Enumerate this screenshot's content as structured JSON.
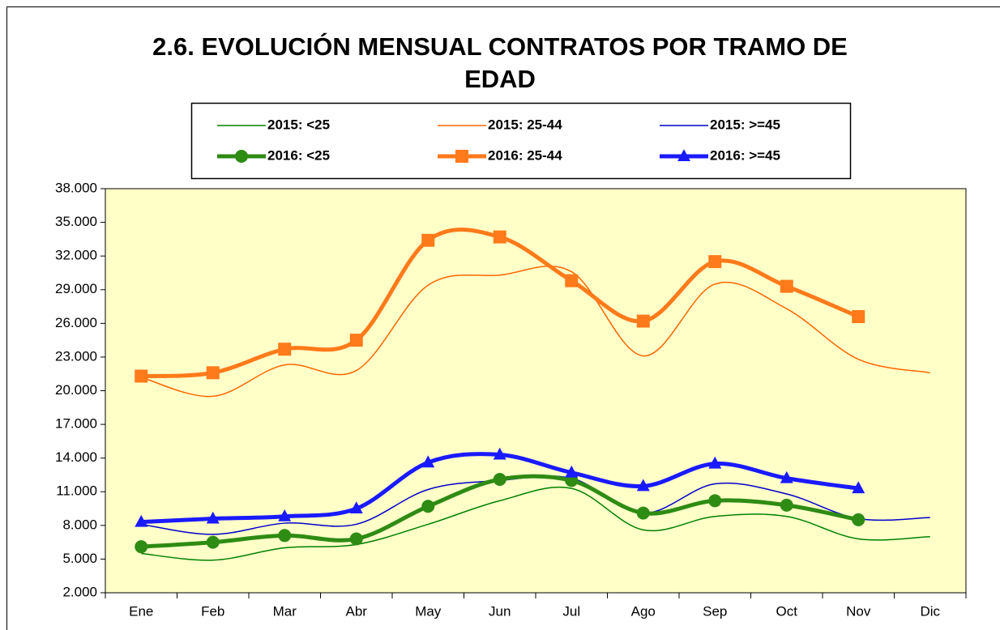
{
  "chart_data": {
    "type": "line",
    "title": "2.6. EVOLUCIÓN MENSUAL CONTRATOS POR TRAMO DE EDAD",
    "categories": [
      "Ene",
      "Feb",
      "Mar",
      "Abr",
      "May",
      "Jun",
      "Jul",
      "Ago",
      "Sep",
      "Oct",
      "Nov",
      "Dic"
    ],
    "ylim": [
      2000,
      38000
    ],
    "yticks": [
      {
        "value": 2000,
        "label": "2.000"
      },
      {
        "value": 5000,
        "label": "5.000"
      },
      {
        "value": 8000,
        "label": "8.000"
      },
      {
        "value": 11000,
        "label": "11.000"
      },
      {
        "value": 14000,
        "label": "14.000"
      },
      {
        "value": 17000,
        "label": "17.000"
      },
      {
        "value": 20000,
        "label": "20.000"
      },
      {
        "value": 23000,
        "label": "23.000"
      },
      {
        "value": 26000,
        "label": "26.000"
      },
      {
        "value": 29000,
        "label": "29.000"
      },
      {
        "value": 32000,
        "label": "32.000"
      },
      {
        "value": 35000,
        "label": "35.000"
      },
      {
        "value": 38000,
        "label": "38.000"
      }
    ],
    "plot_background": "#ffffc8",
    "smooth": true,
    "series": [
      {
        "name": "2015: <25",
        "color": "#008000",
        "width": 1.5,
        "marker": null,
        "values": [
          5500,
          4900,
          6000,
          6300,
          8100,
          10200,
          11300,
          7600,
          8800,
          8800,
          6800,
          7000
        ]
      },
      {
        "name": "2015: 25-44",
        "color": "#ff6600",
        "width": 1.5,
        "marker": null,
        "values": [
          21200,
          19500,
          22300,
          21800,
          29400,
          30300,
          30600,
          23100,
          29500,
          27300,
          22800,
          21600
        ]
      },
      {
        "name": "2015: >=45",
        "color": "#0000cc",
        "width": 1.5,
        "marker": null,
        "values": [
          8100,
          7200,
          8200,
          8100,
          11200,
          12000,
          12200,
          9100,
          11700,
          10800,
          8600,
          8700
        ]
      },
      {
        "name": "2016: <25",
        "color": "#2e8b14",
        "width": 5,
        "marker": "circle",
        "values": [
          6100,
          6500,
          7100,
          6800,
          9700,
          12100,
          12000,
          9100,
          10200,
          9800,
          8500,
          null
        ]
      },
      {
        "name": "2016: 25-44",
        "color": "#ff7a1a",
        "width": 5,
        "marker": "square",
        "values": [
          21300,
          21600,
          23700,
          24500,
          33400,
          33700,
          29800,
          26200,
          31500,
          29300,
          26600,
          null
        ]
      },
      {
        "name": "2016: >=45",
        "color": "#1a1aff",
        "width": 5,
        "marker": "triangle",
        "values": [
          8300,
          8600,
          8800,
          9500,
          13600,
          14300,
          12700,
          11500,
          13500,
          12200,
          11300,
          null
        ]
      }
    ]
  }
}
